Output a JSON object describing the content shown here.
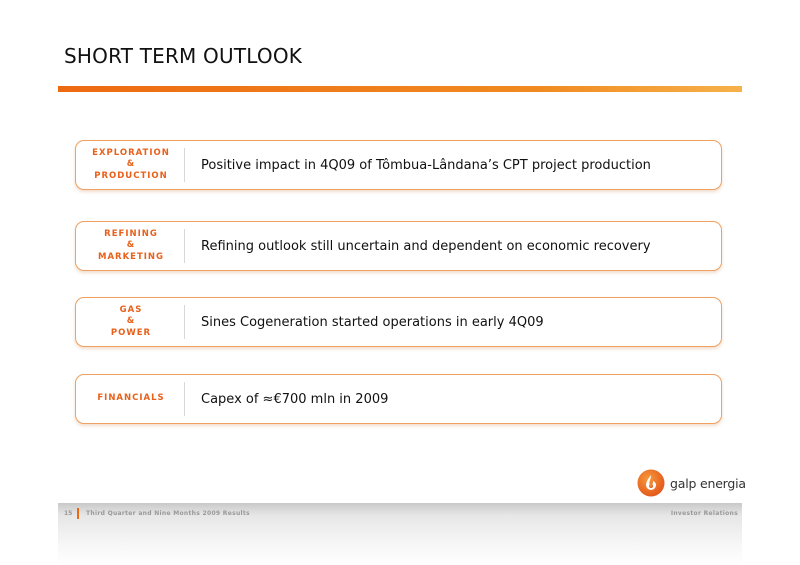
{
  "slide": {
    "title": "SHORT TERM OUTLOOK"
  },
  "rows": [
    {
      "category_lines": [
        "EXPLORATION",
        "&",
        "PRODUCTION"
      ],
      "text": "Positive impact in 4Q09 of Tômbua-Lândana’s CPT project production"
    },
    {
      "category_lines": [
        "REFINING",
        "&",
        "MARKETING"
      ],
      "text": "Refining outlook still uncertain and dependent on economic recovery"
    },
    {
      "category_lines": [
        "GAS",
        "&",
        "POWER"
      ],
      "text": "Sines Cogeneration started operations in early 4Q09"
    },
    {
      "category_lines": [
        "FINANCIALS"
      ],
      "text": "Capex of  ≈€700 mln in 2009"
    }
  ],
  "logo": {
    "text": "galp energia",
    "icon": "galp-flame-logo-icon"
  },
  "footer": {
    "page_number": "15",
    "deck_title": "Third Quarter and Nine Months 2009 Results",
    "department": "Investor Relations"
  },
  "colors": {
    "accent": "#ee6a12",
    "category_text": "#e8601a",
    "row_border": "#f0a060"
  }
}
